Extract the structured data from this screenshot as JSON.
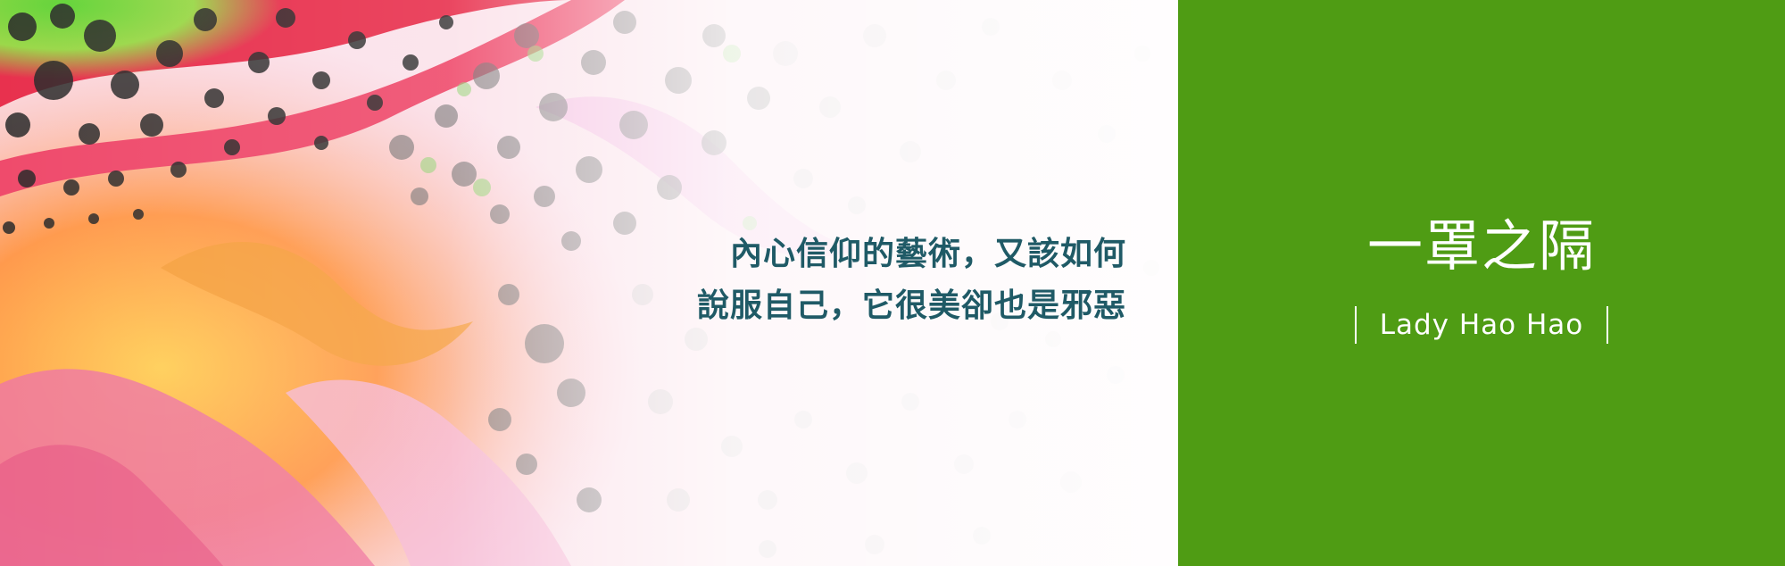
{
  "quote": {
    "line1": "內心信仰的藝術，又該如何",
    "line2": "說服自己，它很美卻也是邪惡"
  },
  "show": {
    "title": "一罩之隔",
    "host": "Lady Hao Hao"
  },
  "colors": {
    "panel_green": "#4f9c14",
    "quote_teal": "#1f5a66",
    "title_white": "#ffffff"
  }
}
